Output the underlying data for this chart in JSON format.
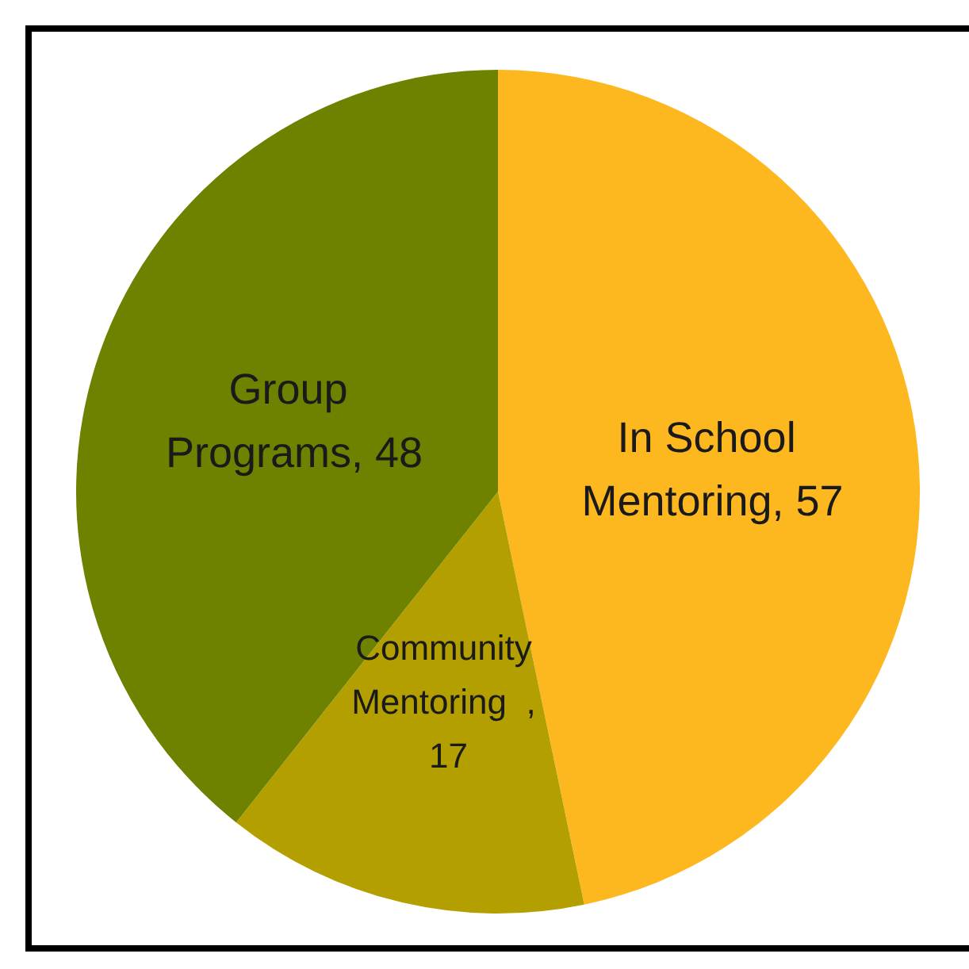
{
  "chart_data": {
    "type": "pie",
    "categories": [
      "In School Mentoring",
      "Community Mentoring",
      "Group Programs"
    ],
    "values": [
      57,
      17,
      48
    ],
    "value_labels": [
      ", 57",
      ", 17",
      ", 48"
    ],
    "colors": [
      "#fdb71f",
      "#b49f00",
      "#6e8200"
    ],
    "legend": false
  }
}
